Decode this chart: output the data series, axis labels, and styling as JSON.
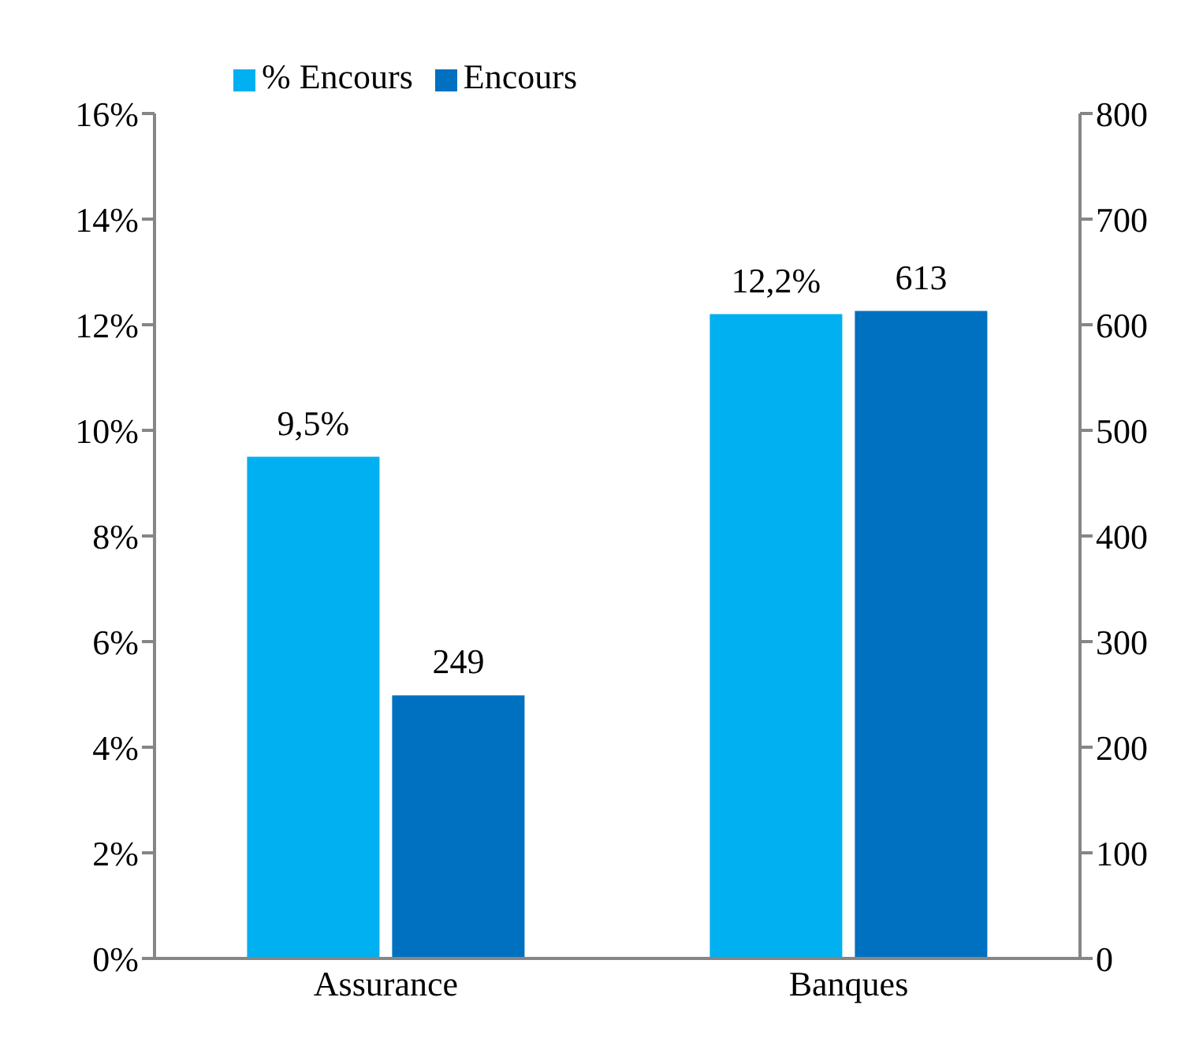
{
  "chart_data": {
    "type": "bar",
    "categories": [
      "Assurance",
      "Banques"
    ],
    "series": [
      {
        "name": "% Encours",
        "color": "#00b0f0",
        "values": [
          9.5,
          12.2
        ],
        "value_labels": [
          "9,5%",
          "12,2%"
        ]
      },
      {
        "name": "Encours",
        "color": "#0070c0",
        "values": [
          249,
          613
        ],
        "axis": "y2",
        "value_labels": [
          "249",
          "613"
        ]
      }
    ],
    "ylim": [
      0,
      16
    ],
    "yticks": [
      {
        "value": 0,
        "label": "0%"
      },
      {
        "value": 2,
        "label": "2%"
      },
      {
        "value": 4,
        "label": "4%"
      },
      {
        "value": 6,
        "label": "6%"
      },
      {
        "value": 8,
        "label": "8%"
      },
      {
        "value": 10,
        "label": "10%"
      },
      {
        "value": 12,
        "label": "12%"
      },
      {
        "value": 14,
        "label": "14%"
      },
      {
        "value": 16,
        "label": "16%"
      }
    ],
    "y2lim": [
      0,
      800
    ],
    "y2ticks": [
      0,
      100,
      200,
      300,
      400,
      500,
      600,
      700,
      800
    ],
    "grid": false,
    "legend": "top left"
  }
}
